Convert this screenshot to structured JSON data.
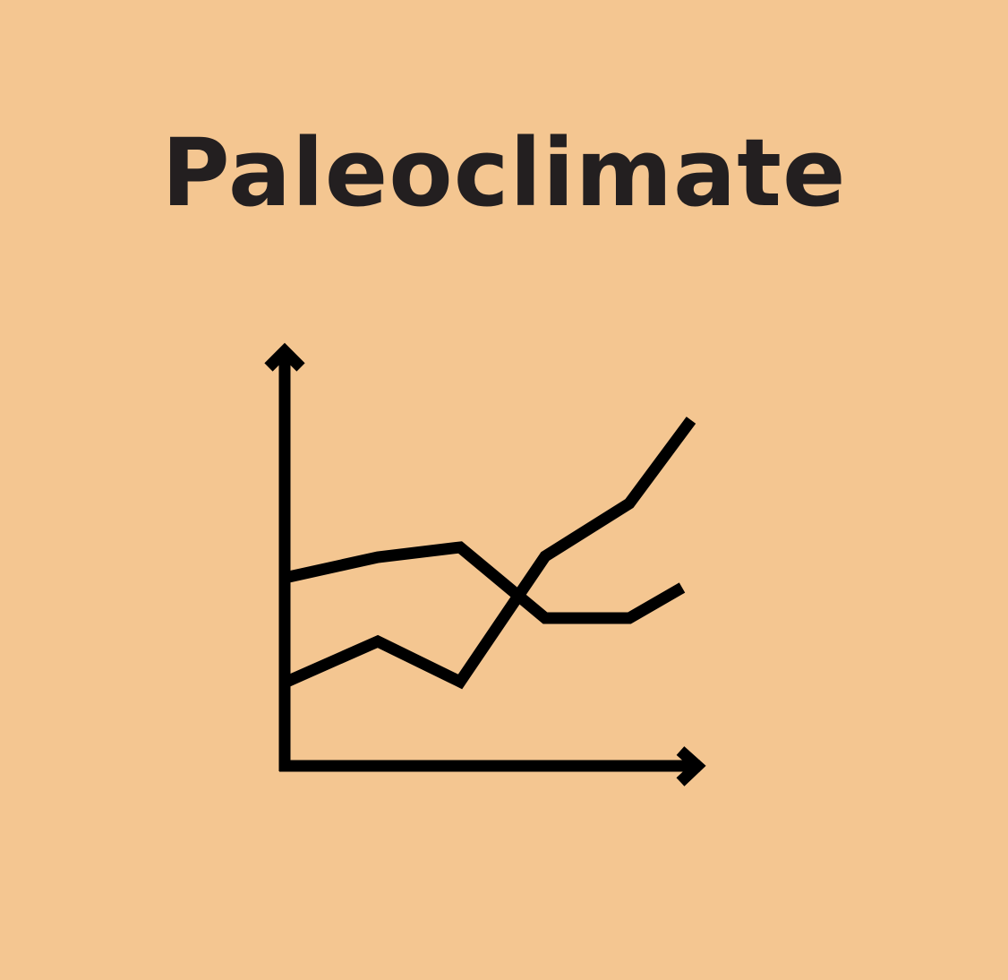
{
  "title": "Paleoclimate",
  "icon": {
    "name": "line-chart-icon",
    "stroke_color": "#000000"
  },
  "colors": {
    "background": "#f4c691",
    "text": "#231f20"
  }
}
